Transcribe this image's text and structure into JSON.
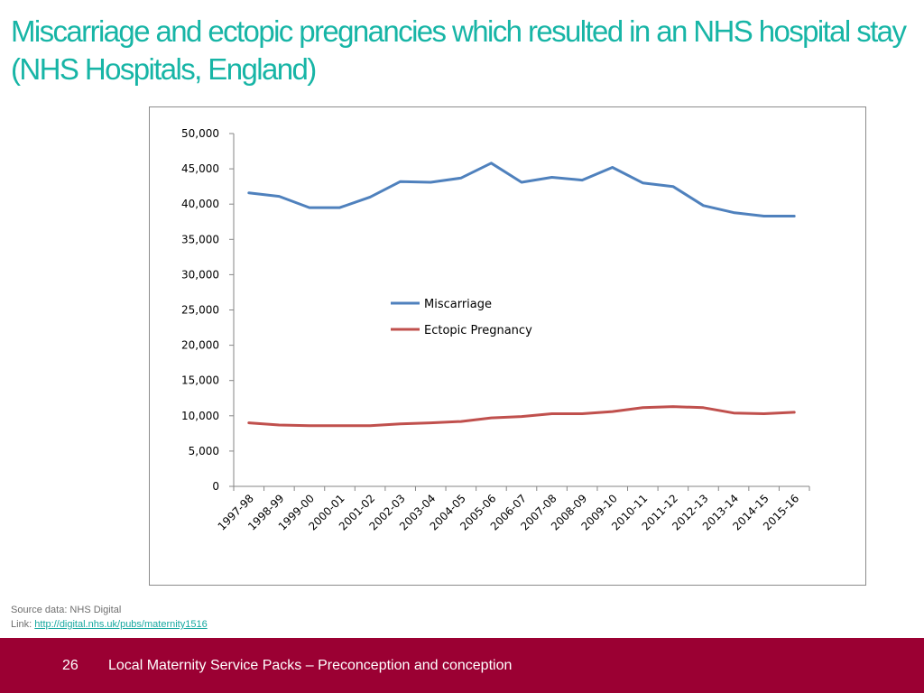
{
  "slide": {
    "title": "Miscarriage and ectopic pregnancies which resulted in an NHS hospital stay (NHS Hospitals, England)",
    "source_text": "Source data: NHS Digital",
    "link_prefix": "Link: ",
    "link_text": "http://digital.nhs.uk/pubs/maternity1516",
    "page_number": "26",
    "footer_text": "Local Maternity Service Packs – Preconception and conception",
    "colors": {
      "title": "#17b5a6",
      "footer_bg": "#9b0033",
      "link": "#17a8a0"
    }
  },
  "chart_data": {
    "type": "line",
    "title": "",
    "xlabel": "",
    "ylabel": "",
    "categories": [
      "1997-98",
      "1998-99",
      "1999-00",
      "2000-01",
      "2001-02",
      "2002-03",
      "2003-04",
      "2004-05",
      "2005-06",
      "2006-07",
      "2007-08",
      "2008-09",
      "2009-10",
      "2010-11",
      "2011-12",
      "2012-13",
      "2013-14",
      "2014-15",
      "2015-16"
    ],
    "series": [
      {
        "name": "Miscarriage",
        "color": "#4f81bd",
        "values": [
          41600,
          41100,
          39500,
          39500,
          41000,
          43200,
          43100,
          43700,
          45800,
          43100,
          43800,
          43400,
          45200,
          43000,
          42500,
          39800,
          38800,
          38300,
          38300
        ]
      },
      {
        "name": "Ectopic Pregnancy",
        "color": "#c0504d",
        "values": [
          9000,
          8700,
          8600,
          8600,
          8600,
          8850,
          9000,
          9200,
          9700,
          9900,
          10300,
          10300,
          10600,
          11150,
          11300,
          11150,
          10400,
          10300,
          10500
        ]
      }
    ],
    "ylim": [
      0,
      50000
    ],
    "yticks": [
      0,
      5000,
      10000,
      15000,
      20000,
      25000,
      30000,
      35000,
      40000,
      45000,
      50000
    ],
    "ytick_labels": [
      "0",
      "5,000",
      "10,000",
      "15,000",
      "20,000",
      "25,000",
      "30,000",
      "35,000",
      "40,000",
      "45,000",
      "50,000"
    ],
    "grid": false,
    "legend_position": "center"
  }
}
